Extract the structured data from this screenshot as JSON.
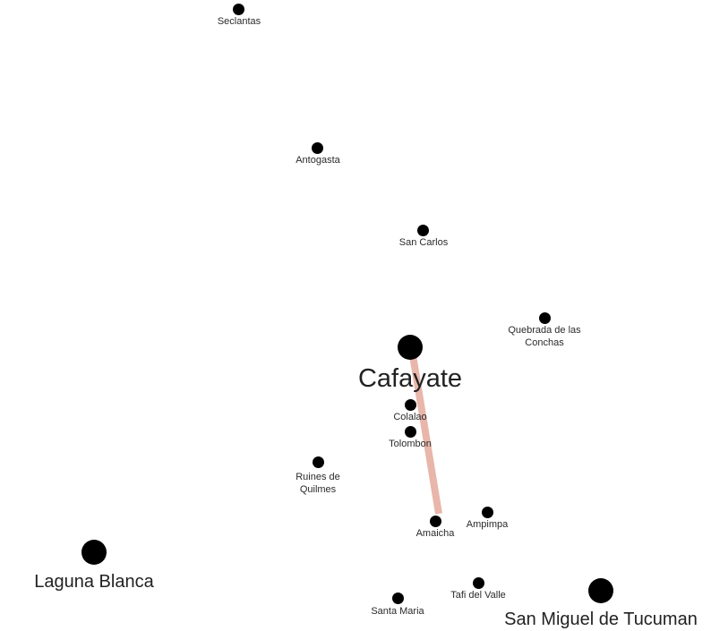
{
  "colors": {
    "background": "#ffffff",
    "marker": "#000000",
    "route": "#e7b3a6",
    "label": "#2a2a2a"
  },
  "places": {
    "seclantas": "Seclantas",
    "antogasta": "Antogasta",
    "san_carlos": "San Carlos",
    "quebrada": "Quebrada de las Conchas",
    "cafayate": "Cafayate",
    "colalao": "Colalao",
    "tolombon": "Tolombon",
    "ruines": "Ruines de Quilmes",
    "amaicha": "Amaicha",
    "ampimpa": "Ampimpa",
    "laguna_blanca": "Laguna Blanca",
    "tafi": "Tafi del Valle",
    "santa_maria": "Santa Maria",
    "san_miguel": "San Miguel de Tucuman"
  },
  "route": {
    "from": "Cafayate",
    "to": "Amaicha"
  }
}
